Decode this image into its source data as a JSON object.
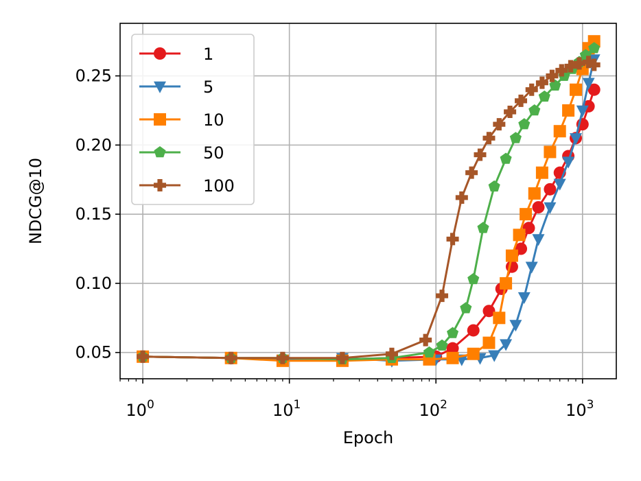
{
  "chart_data": {
    "type": "line",
    "xlabel": "Epoch",
    "ylabel": "NDCG@10",
    "xscale": "log",
    "xlim": [
      0.7,
      1700
    ],
    "ylim": [
      0.031,
      0.288
    ],
    "grid": true,
    "legend_position": "top-left",
    "x_ticks": [
      {
        "value": 1,
        "base": "10",
        "exp": "0"
      },
      {
        "value": 10,
        "base": "10",
        "exp": "1"
      },
      {
        "value": 100,
        "base": "10",
        "exp": "2"
      },
      {
        "value": 1000,
        "base": "10",
        "exp": "3"
      }
    ],
    "y_ticks": [
      {
        "value": 0.05,
        "label": "0.05"
      },
      {
        "value": 0.1,
        "label": "0.10"
      },
      {
        "value": 0.15,
        "label": "0.15"
      },
      {
        "value": 0.2,
        "label": "0.20"
      },
      {
        "value": 0.25,
        "label": "0.25"
      }
    ],
    "series": [
      {
        "name": "1",
        "color": "#e41a1c",
        "marker": "circle",
        "x": [
          1,
          4,
          9,
          23,
          50,
          100,
          130,
          180,
          230,
          280,
          330,
          380,
          430,
          500,
          600,
          700,
          800,
          900,
          1000,
          1100,
          1200
        ],
        "y": [
          0.047,
          0.046,
          0.045,
          0.045,
          0.046,
          0.047,
          0.053,
          0.066,
          0.08,
          0.096,
          0.112,
          0.125,
          0.14,
          0.155,
          0.168,
          0.18,
          0.192,
          0.205,
          0.215,
          0.228,
          0.24
        ]
      },
      {
        "name": "5",
        "color": "#377eb8",
        "marker": "triangle-down",
        "x": [
          1,
          4,
          9,
          23,
          50,
          100,
          150,
          200,
          250,
          300,
          350,
          400,
          450,
          500,
          600,
          700,
          800,
          900,
          1000,
          1100,
          1200
        ],
        "y": [
          0.047,
          0.046,
          0.045,
          0.046,
          0.044,
          0.045,
          0.045,
          0.046,
          0.048,
          0.056,
          0.07,
          0.09,
          0.112,
          0.132,
          0.155,
          0.172,
          0.188,
          0.205,
          0.225,
          0.245,
          0.262
        ]
      },
      {
        "name": "10",
        "color": "#ff7f00",
        "marker": "square",
        "x": [
          1,
          4,
          9,
          23,
          50,
          90,
          130,
          180,
          230,
          270,
          300,
          330,
          370,
          410,
          470,
          530,
          600,
          700,
          800,
          900,
          1000,
          1100,
          1200
        ],
        "y": [
          0.047,
          0.046,
          0.044,
          0.044,
          0.045,
          0.045,
          0.046,
          0.049,
          0.057,
          0.075,
          0.1,
          0.12,
          0.135,
          0.15,
          0.165,
          0.18,
          0.195,
          0.21,
          0.225,
          0.24,
          0.255,
          0.27,
          0.275
        ]
      },
      {
        "name": "50",
        "color": "#4daf4a",
        "marker": "pentagon",
        "x": [
          1,
          4,
          9,
          23,
          50,
          90,
          110,
          130,
          160,
          180,
          210,
          250,
          300,
          350,
          400,
          470,
          550,
          650,
          750,
          850,
          950,
          1050,
          1200
        ],
        "y": [
          0.047,
          0.046,
          0.046,
          0.045,
          0.046,
          0.05,
          0.055,
          0.064,
          0.082,
          0.103,
          0.14,
          0.17,
          0.19,
          0.205,
          0.215,
          0.225,
          0.235,
          0.243,
          0.25,
          0.255,
          0.26,
          0.265,
          0.27
        ]
      },
      {
        "name": "100",
        "color": "#a65628",
        "marker": "plus",
        "x": [
          1,
          4,
          9,
          23,
          50,
          85,
          110,
          130,
          150,
          175,
          200,
          230,
          270,
          320,
          380,
          450,
          530,
          620,
          720,
          830,
          950,
          1100,
          1200
        ],
        "y": [
          0.047,
          0.046,
          0.046,
          0.046,
          0.049,
          0.059,
          0.091,
          0.132,
          0.162,
          0.18,
          0.193,
          0.205,
          0.215,
          0.224,
          0.232,
          0.24,
          0.245,
          0.25,
          0.254,
          0.257,
          0.259,
          0.26,
          0.258
        ]
      }
    ]
  }
}
